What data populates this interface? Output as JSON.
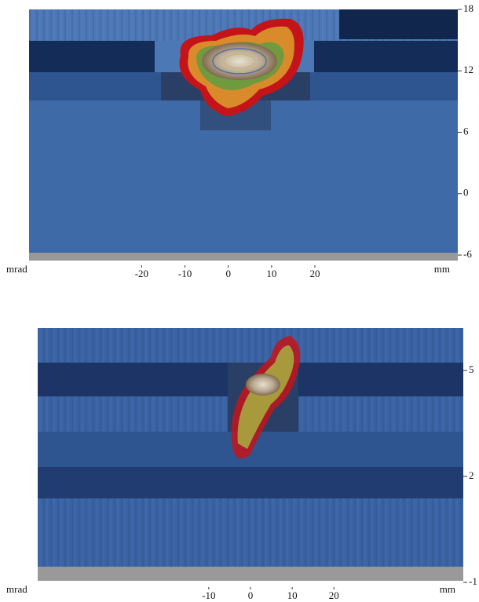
{
  "chart_data": [
    {
      "type": "contour",
      "x_label": "mrad",
      "x_unit": "mm",
      "xlim": [
        -46,
        53
      ],
      "xticks": [
        -20,
        -10,
        0,
        10,
        20
      ],
      "ylim": [
        -6,
        18
      ],
      "yticks": [
        -6,
        0,
        6,
        12,
        18
      ]
    },
    {
      "type": "contour",
      "x_label": "mrad",
      "x_unit": "mm",
      "xlim": [
        -51,
        51
      ],
      "xticks": [
        -10,
        0,
        10,
        20
      ],
      "ylim": [
        -1,
        6.2
      ],
      "yticks": [
        -1,
        2,
        5
      ]
    }
  ]
}
